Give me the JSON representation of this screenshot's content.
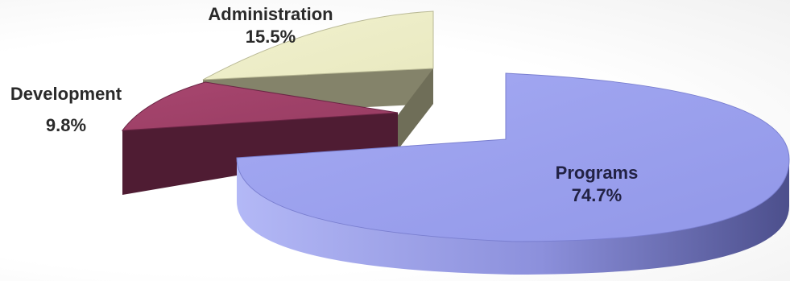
{
  "chart_data": {
    "type": "pie",
    "title": "",
    "categories": [
      "Programs",
      "Administration",
      "Development"
    ],
    "values": [
      74.7,
      15.5,
      9.8
    ],
    "value_labels": [
      "74.7%",
      "15.5%",
      "9.8%"
    ],
    "colors": {
      "Programs": "#9aa0ee",
      "Administration": "#efefc9",
      "Development": "#a0416a"
    },
    "side_colors": {
      "Programs": "#6b6fbd",
      "Administration": "#88876b",
      "Development": "#521a33"
    },
    "style": "3d-exploded",
    "legend": "none"
  }
}
